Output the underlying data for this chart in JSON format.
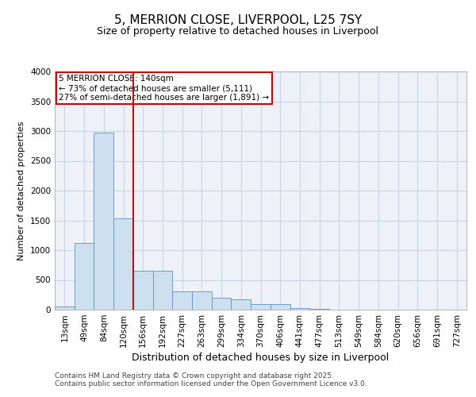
{
  "title_line1": "5, MERRION CLOSE, LIVERPOOL, L25 7SY",
  "title_line2": "Size of property relative to detached houses in Liverpool",
  "xlabel": "Distribution of detached houses by size in Liverpool",
  "ylabel": "Number of detached properties",
  "categories": [
    "13sqm",
    "49sqm",
    "84sqm",
    "120sqm",
    "156sqm",
    "192sqm",
    "227sqm",
    "263sqm",
    "299sqm",
    "334sqm",
    "370sqm",
    "406sqm",
    "441sqm",
    "477sqm",
    "513sqm",
    "549sqm",
    "584sqm",
    "620sqm",
    "656sqm",
    "691sqm",
    "727sqm"
  ],
  "values": [
    50,
    1120,
    2980,
    1530,
    650,
    650,
    310,
    310,
    200,
    175,
    90,
    90,
    30,
    10,
    5,
    5,
    5,
    5,
    5,
    5,
    5
  ],
  "bar_color": "#cce0f0",
  "bar_edge_color": "#6090c0",
  "vline_color": "#cc0000",
  "annotation_text": "5 MERRION CLOSE: 140sqm\n← 73% of detached houses are smaller (5,111)\n27% of semi-detached houses are larger (1,891) →",
  "annotation_box_color": "#cc0000",
  "ylim": [
    0,
    4000
  ],
  "yticks": [
    0,
    500,
    1000,
    1500,
    2000,
    2500,
    3000,
    3500,
    4000
  ],
  "grid_color": "#c8d4e8",
  "plot_bg_color": "#eef2f8",
  "fig_bg_color": "#ffffff",
  "footer_line1": "Contains HM Land Registry data © Crown copyright and database right 2025.",
  "footer_line2": "Contains public sector information licensed under the Open Government Licence v3.0.",
  "title1_fontsize": 11,
  "title2_fontsize": 9,
  "xlabel_fontsize": 9,
  "ylabel_fontsize": 8,
  "tick_fontsize": 7.5,
  "footer_fontsize": 6.5
}
